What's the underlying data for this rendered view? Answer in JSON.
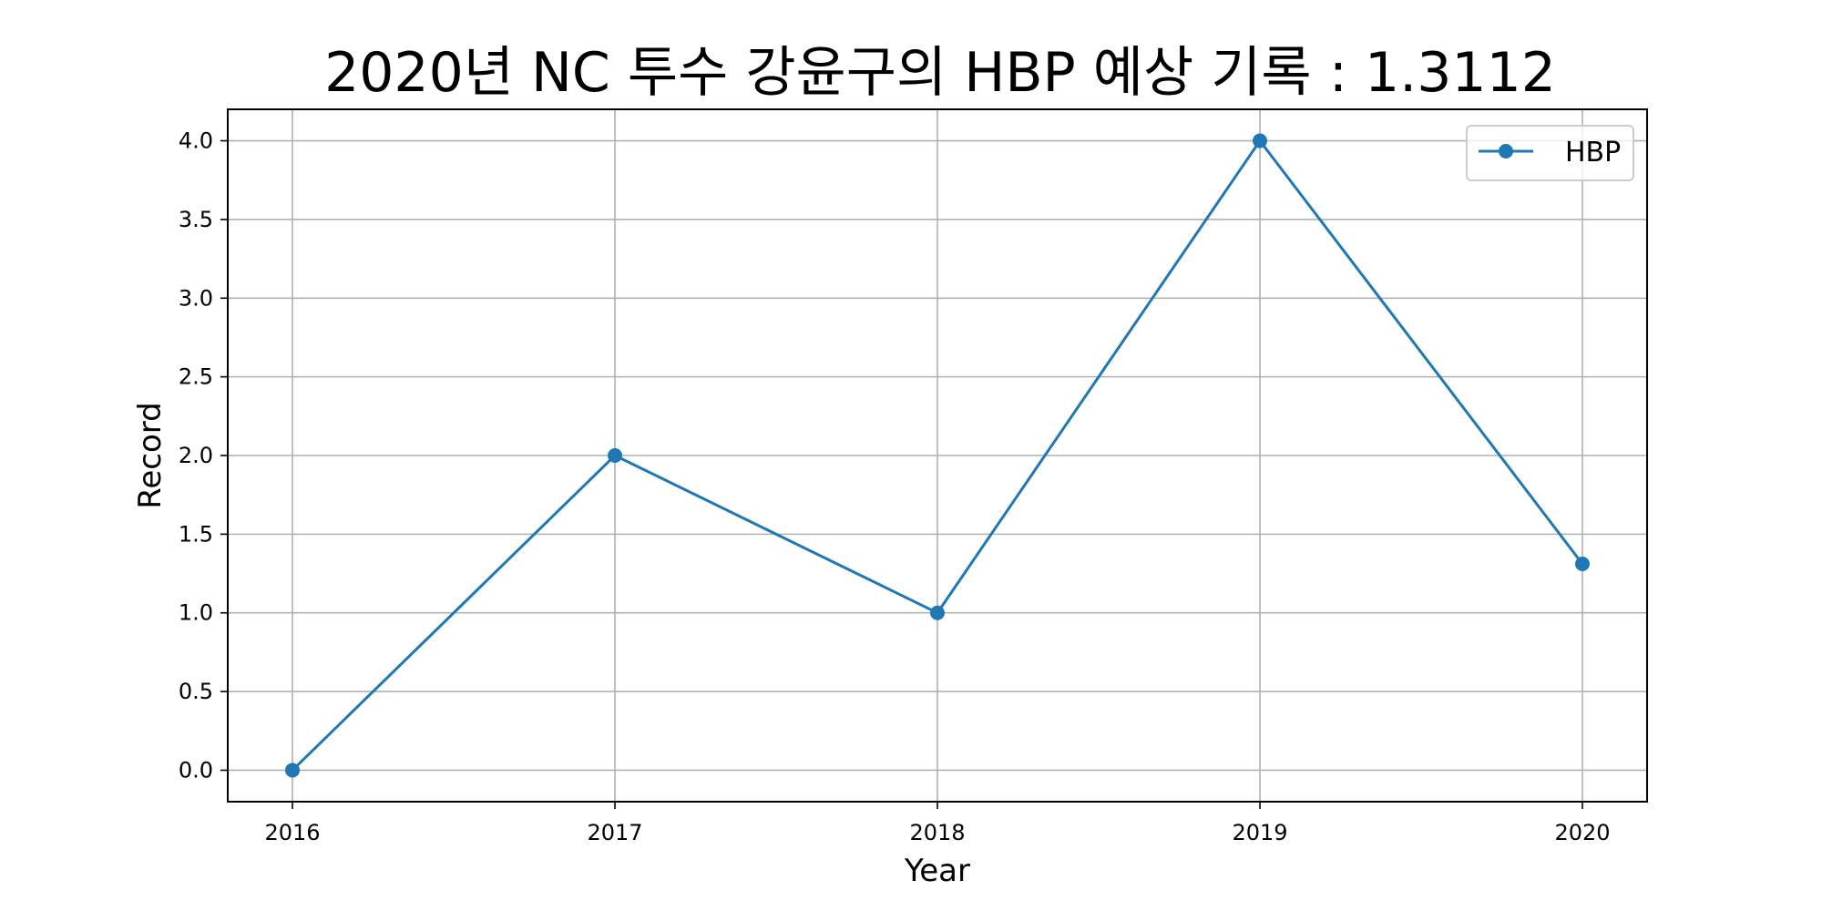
{
  "chart_data": {
    "type": "line",
    "title": "2020년 NC 투수 강윤구의 HBP 예상 기록 : 1.3112",
    "xlabel": "Year",
    "ylabel": "Record",
    "categories": [
      "2016",
      "2017",
      "2018",
      "2019",
      "2020"
    ],
    "series": [
      {
        "name": "HBP",
        "values": [
          0.0,
          2.0,
          1.0,
          4.0,
          1.3112
        ],
        "color": "#1f77b4"
      }
    ],
    "ylim": [
      -0.2,
      4.2
    ],
    "yticks": [
      0.0,
      0.5,
      1.0,
      1.5,
      2.0,
      2.5,
      3.0,
      3.5,
      4.0
    ],
    "ytick_labels": [
      "0.0",
      "0.5",
      "1.0",
      "1.5",
      "2.0",
      "2.5",
      "3.0",
      "3.5",
      "4.0"
    ],
    "grid": true,
    "legend_position": "top-right"
  }
}
